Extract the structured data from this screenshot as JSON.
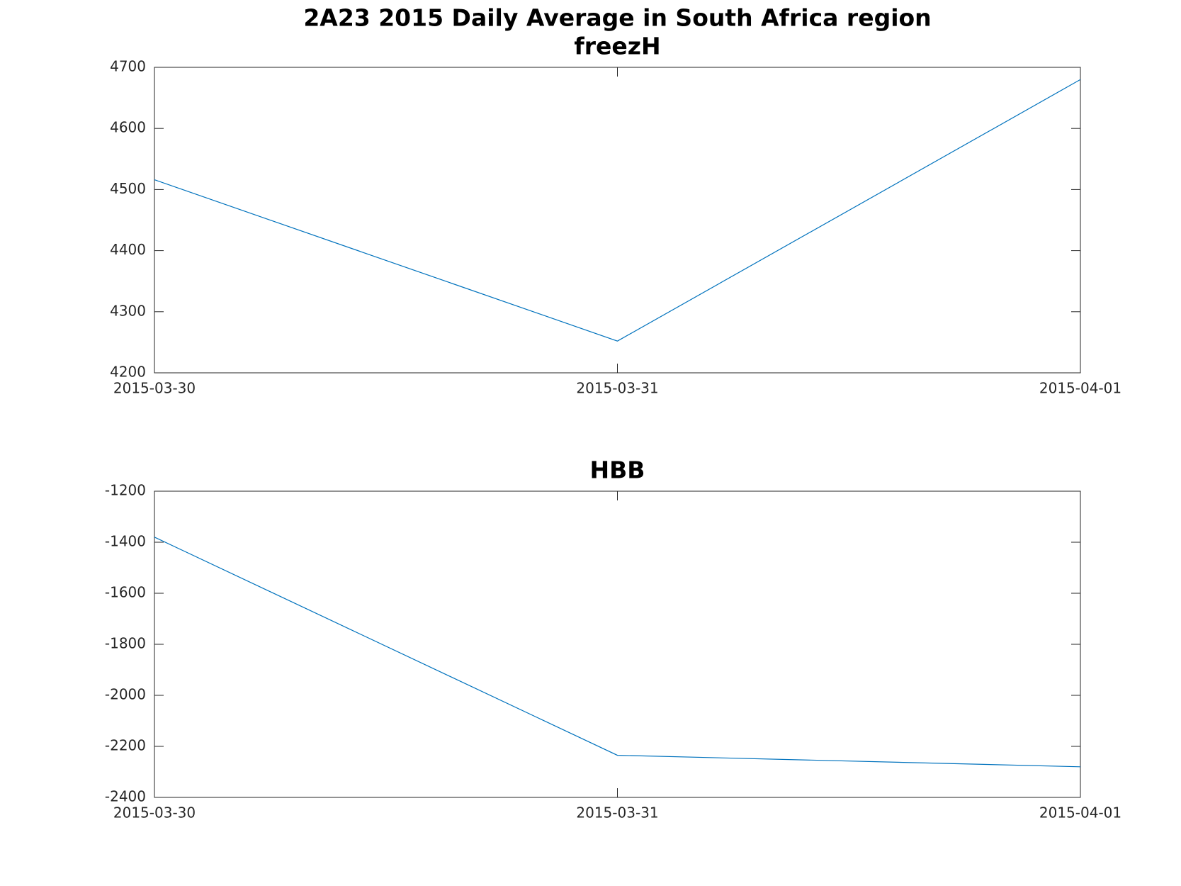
{
  "chart_data": [
    {
      "type": "line",
      "title": "2A23 2015 Daily Average in South Africa region",
      "subtitle": "freezH",
      "x": [
        "2015-03-30",
        "2015-03-31",
        "2015-04-01"
      ],
      "series": [
        {
          "color": "#0072bd",
          "values": [
            4516,
            4252,
            4680
          ]
        }
      ],
      "ylim": [
        4200,
        4700
      ],
      "yticks": [
        4200,
        4300,
        4400,
        4500,
        4600,
        4700
      ],
      "grid": false
    },
    {
      "type": "line",
      "title": "HBB",
      "x": [
        "2015-03-30",
        "2015-03-31",
        "2015-04-01"
      ],
      "series": [
        {
          "color": "#0072bd",
          "values": [
            -1380,
            -2235,
            -2280
          ]
        }
      ],
      "ylim": [
        -2400,
        -1200
      ],
      "yticks": [
        -2400,
        -2200,
        -2000,
        -1800,
        -1600,
        -1400,
        -1200
      ],
      "grid": false
    }
  ]
}
